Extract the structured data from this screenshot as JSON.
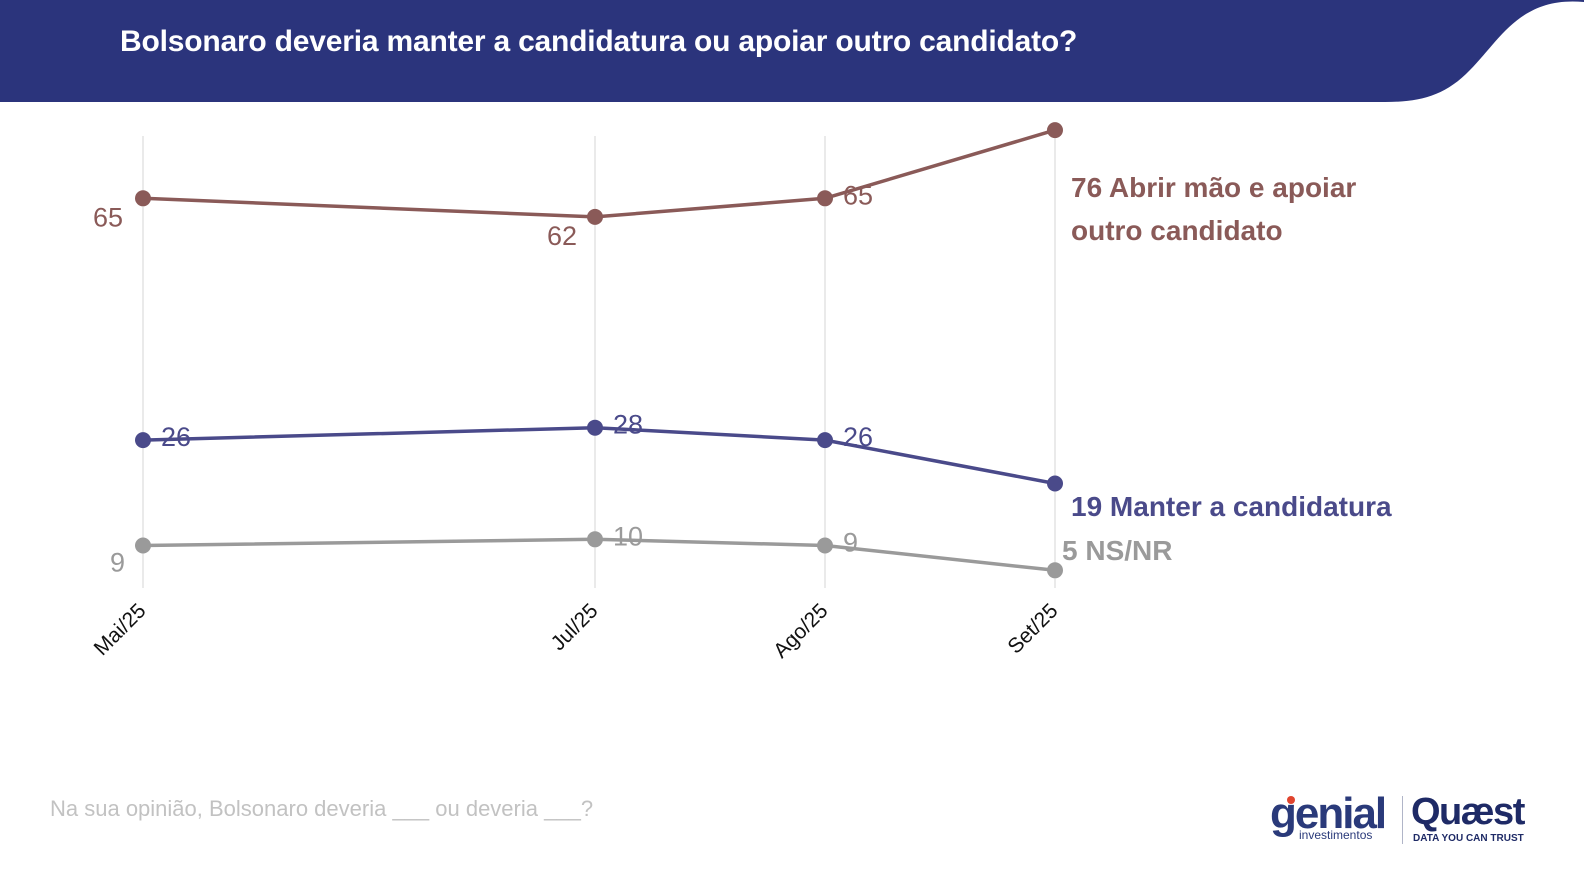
{
  "header": {
    "title": "Bolsonaro deveria manter a candidatura ou apoiar outro candidato?",
    "bg_color": "#2b347c"
  },
  "chart_data": {
    "type": "line",
    "title": "Bolsonaro deveria manter a candidatura ou apoiar outro candidato?",
    "categories": [
      "Mai/25",
      "Jul/25",
      "Ago/25",
      "Set/25"
    ],
    "xlabel": "",
    "ylabel": "",
    "ylim": [
      0,
      80
    ],
    "grid": "vertical",
    "series": [
      {
        "name": "Abrir mão e apoiar outro candidato",
        "end_label_lines": [
          "76 Abrir mão e apoiar",
          "outro candidato"
        ],
        "values": [
          65,
          62,
          65,
          76
        ],
        "point_labels": [
          "65",
          "62",
          "65"
        ],
        "color": "#8a5a58"
      },
      {
        "name": "Manter a candidatura",
        "end_label_lines": [
          "19 Manter a candidatura"
        ],
        "values": [
          26,
          28,
          26,
          19
        ],
        "point_labels": [
          "26",
          "28",
          "26"
        ],
        "color": "#4a4a8a"
      },
      {
        "name": "NS/NR",
        "end_label_lines": [
          "5 NS/NR"
        ],
        "values": [
          9,
          10,
          9,
          5
        ],
        "point_labels": [
          "9",
          "10",
          "9"
        ],
        "color": "#9a9a9a"
      }
    ]
  },
  "footnote": "Na sua opinião, Bolsonaro deveria ___ ou deveria ___?",
  "logos": {
    "genial": {
      "name": "genial",
      "subtitle": "investimentos",
      "color": "#2a3a7a",
      "dot_color": "#e0442e"
    },
    "quaest": {
      "name": "Quæst",
      "tagline": "DATA YOU CAN TRUST",
      "color": "#1e2a66"
    }
  }
}
